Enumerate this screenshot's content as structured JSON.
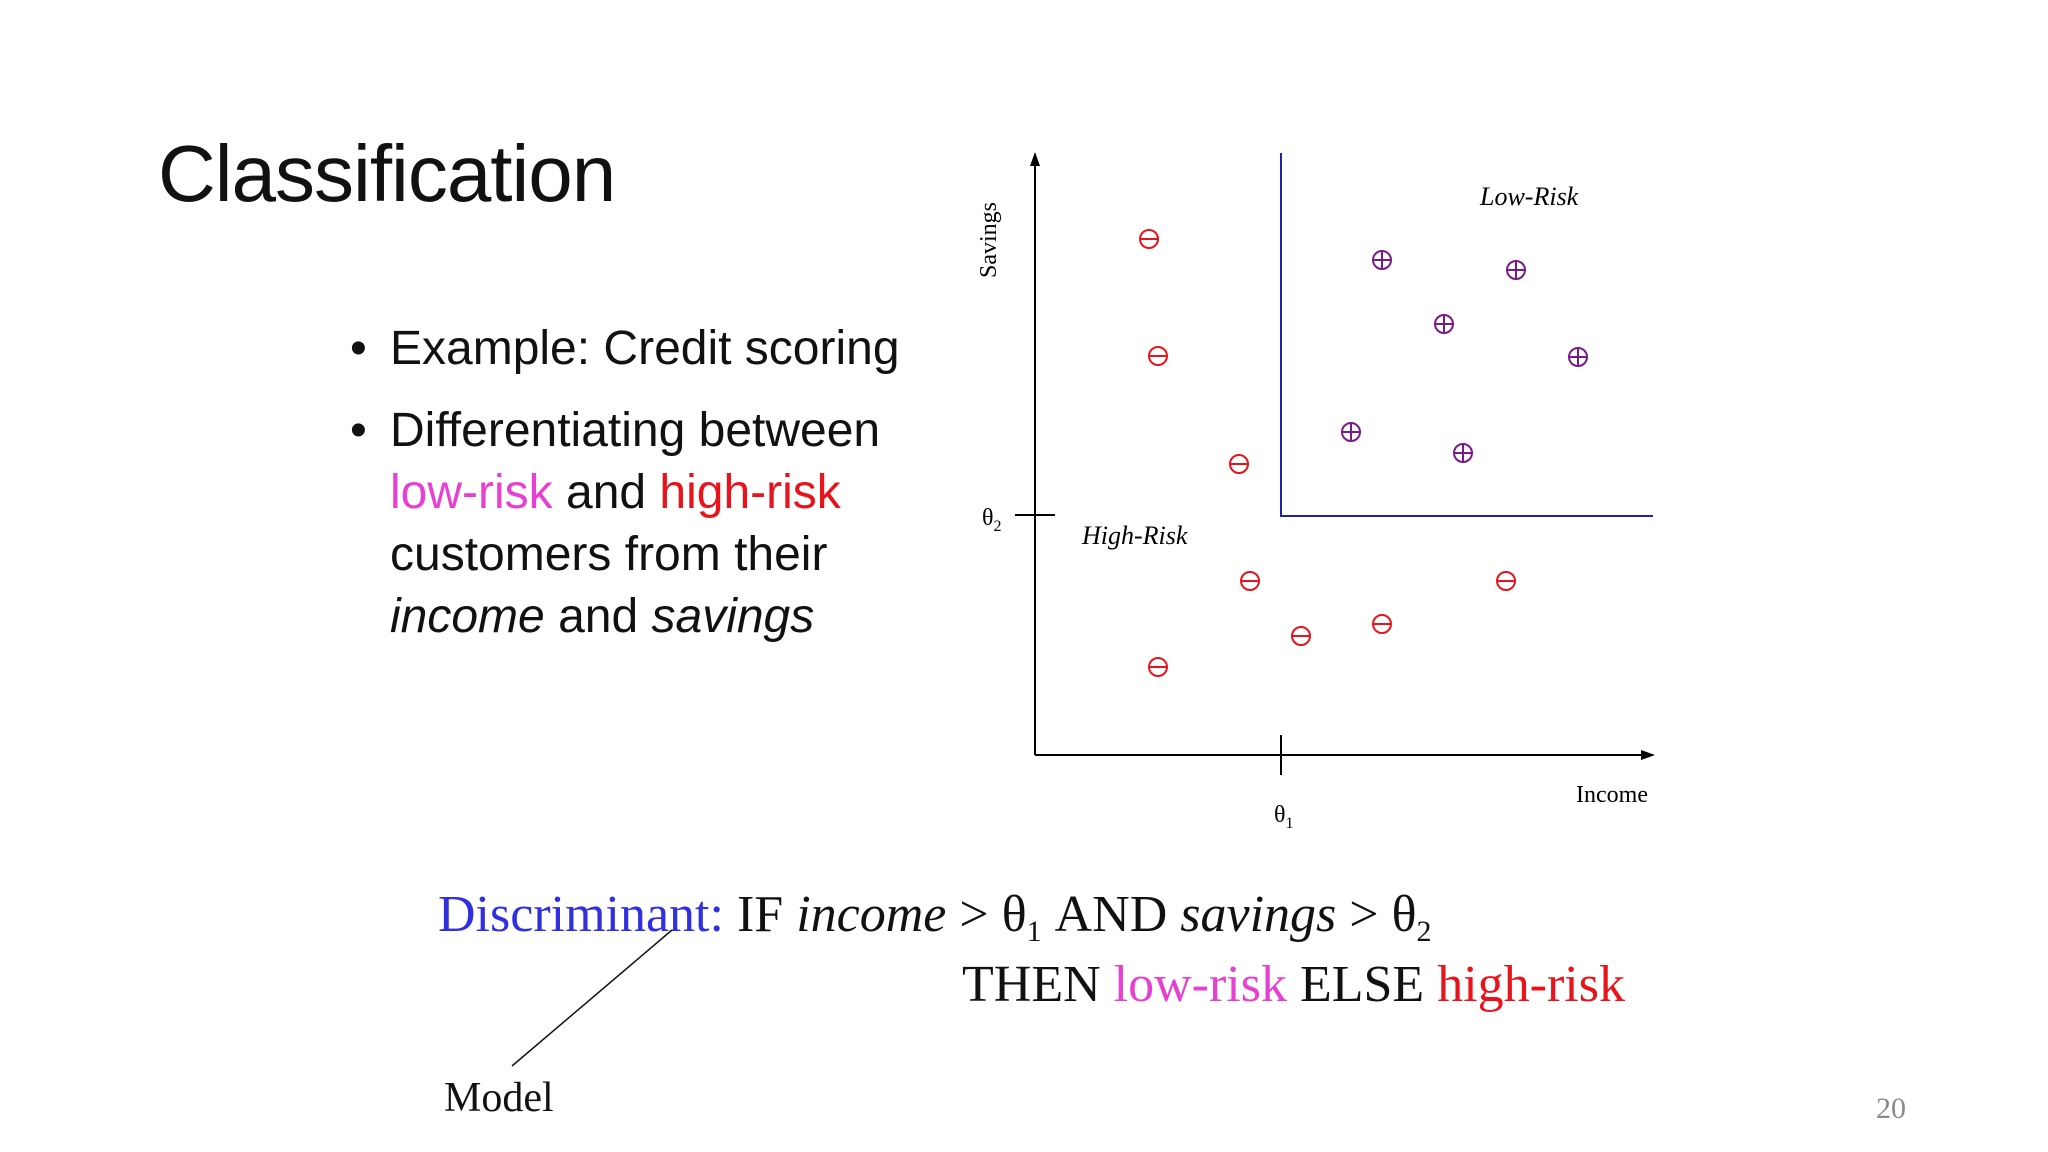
{
  "title": "Classification",
  "bullets": {
    "b1_text": "Example: Credit scoring",
    "b2_pre": "Differentiating between ",
    "b2_low": "low-risk",
    "b2_mid": " and ",
    "b2_high": "high-risk",
    "b2_mid2": " customers from their ",
    "b2_income": "income",
    "b2_and": " and ",
    "b2_savings": "savings"
  },
  "diagram": {
    "y_axis_label": "Savings",
    "x_axis_label": "Income",
    "theta1_label": "θ",
    "theta1_sub": "1",
    "theta2_label": "θ",
    "theta2_sub": "2",
    "low_risk_label": "Low-Risk",
    "high_risk_label": "High-Risk",
    "colors": {
      "axis": "#000000",
      "boundary": "#2020b0",
      "minus": "#e8141b",
      "plus": "#7a1a8a"
    }
  },
  "rule": {
    "discriminant": "Discriminant:",
    "if": " IF ",
    "income": "income",
    "gt1": " > θ",
    "sub1": "1",
    "and": " AND ",
    "savings": "savings",
    "gt2": " > θ",
    "sub2": "2",
    "then": "THEN ",
    "low": "low-risk",
    "else": " ELSE ",
    "high": "high-risk"
  },
  "model_label": "Model",
  "page_number": "20",
  "accent_colors": {
    "blue": "#3030e0",
    "pink": "#e83fd3",
    "red": "#e8141b"
  }
}
